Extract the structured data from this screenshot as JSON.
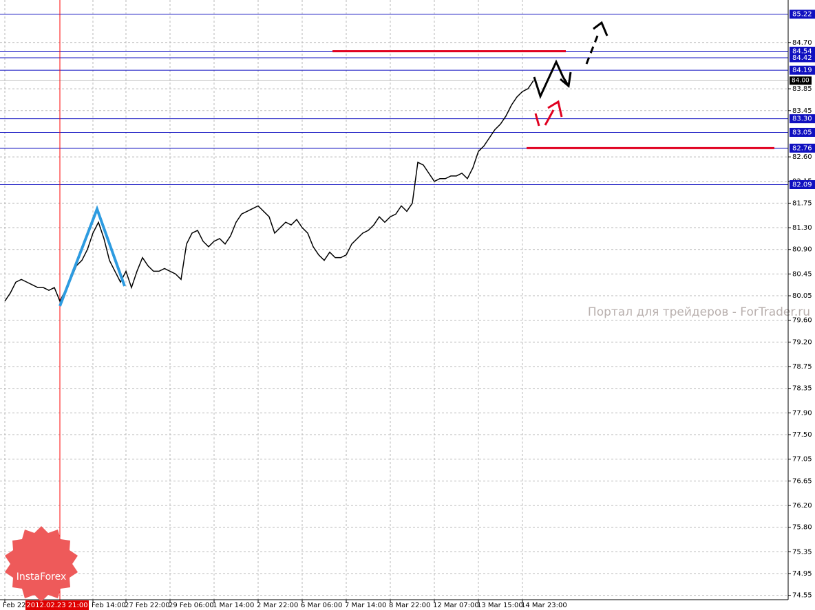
{
  "chart_data": {
    "type": "line",
    "categories": [
      "Feb 22:",
      null,
      null,
      null,
      null,
      null,
      null,
      null,
      null,
      null,
      null,
      null,
      null,
      null,
      null,
      null,
      "Feb 14:00",
      null,
      null,
      null,
      null,
      null,
      "27 Feb 22:00",
      null,
      null,
      null,
      null,
      null,
      null,
      null,
      "29 Feb 06:00",
      null,
      null,
      null,
      null,
      null,
      null,
      null,
      "1 Mar 14:00",
      null,
      null,
      null,
      null,
      null,
      null,
      null,
      "2 Mar 22:00",
      null,
      null,
      null,
      null,
      null,
      null,
      null,
      "6 Mar 06:00",
      null,
      null,
      null,
      null,
      null,
      null,
      null,
      "7 Mar 14:00",
      null,
      null,
      null,
      null,
      null,
      null,
      null,
      "8 Mar 22:00",
      null,
      null,
      null,
      null,
      null,
      null,
      null,
      "12 Mar 07:00",
      null,
      null,
      null,
      null,
      null,
      null,
      null,
      "13 Mar 15:00",
      null,
      null,
      null,
      null,
      null,
      null,
      null,
      "14 Mar 23:00",
      null,
      null
    ],
    "series": [
      {
        "color": "#000000",
        "values": [
          79.95,
          80.1,
          80.3,
          80.35,
          80.3,
          80.25,
          80.2,
          80.2,
          80.15,
          80.2,
          79.95,
          80.15,
          80.35,
          80.6,
          80.7,
          80.9,
          81.2,
          81.4,
          81.1,
          80.7,
          80.5,
          80.3,
          80.5,
          80.2,
          80.5,
          80.75,
          80.6,
          80.5,
          80.5,
          80.55,
          80.5,
          80.45,
          80.35,
          81.0,
          81.2,
          81.25,
          81.05,
          80.95,
          81.05,
          81.1,
          81.0,
          81.15,
          81.4,
          81.55,
          81.6,
          81.65,
          81.7,
          81.6,
          81.5,
          81.2,
          81.3,
          81.4,
          81.35,
          81.45,
          81.3,
          81.2,
          80.95,
          80.8,
          80.7,
          80.85,
          80.75,
          80.75,
          80.8,
          81.0,
          81.1,
          81.2,
          81.25,
          81.35,
          81.5,
          81.4,
          81.5,
          81.55,
          81.7,
          81.6,
          81.75,
          82.5,
          82.45,
          82.3,
          82.15,
          82.2,
          82.2,
          82.25,
          82.25,
          82.3,
          82.2,
          82.4,
          82.7,
          82.8,
          82.95,
          83.1,
          83.2,
          83.35,
          83.55,
          83.7,
          83.8,
          83.85,
          84.0
        ]
      }
    ],
    "ylim": [
      74.47,
      85.48
    ],
    "yticks": [
      74.55,
      74.95,
      75.35,
      {
        "value": 75.8,
        "label": "75.80"
      },
      {
        "value": 76.2,
        "label": "76.20"
      },
      76.65,
      77.05,
      {
        "value": 77.5,
        "label": "77.50"
      },
      {
        "value": 77.9,
        "label": "77.90"
      },
      78.35,
      78.75,
      {
        "value": 79.2,
        "label": "79.20"
      },
      {
        "value": 79.6,
        "label": "79.60"
      },
      80.05,
      80.45,
      {
        "value": 80.9,
        "label": "80.90"
      },
      {
        "value": 81.3,
        "label": "81.30"
      },
      81.75,
      82.15,
      {
        "value": 82.6,
        "label": "82.60"
      },
      83.45,
      83.85,
      {
        "value": 84.7,
        "label": "84.70"
      }
    ],
    "grid": true,
    "levels": [
      85.22,
      84.54,
      84.42,
      84.19,
      {
        "value": 83.3,
        "label": "83.30"
      },
      83.05,
      82.76,
      82.09
    ],
    "level_color": "#1010c0",
    "current_price": {
      "value": 84.0,
      "label": "84.00"
    },
    "red_levels": [
      84.54,
      82.76
    ],
    "crosshair_label": "2012.02.23 21:00",
    "watermark": "Портал для трейдеров - ForTrader.ru",
    "logo": "InstaForex"
  }
}
